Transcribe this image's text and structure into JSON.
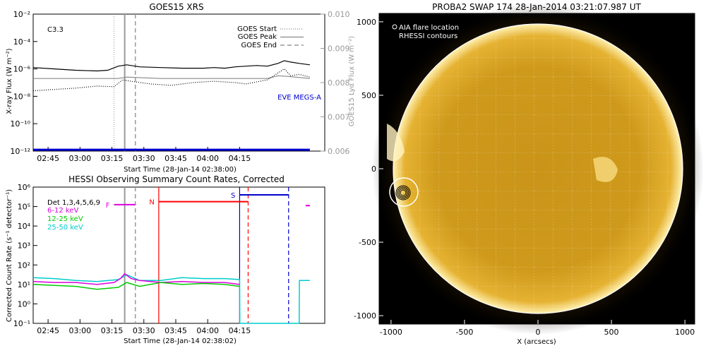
{
  "chart_data": [
    {
      "type": "line",
      "title": "GOES15 XRS",
      "annotation": "C3.3",
      "xlabel": "Start Time (28-Jan-14 02:38:00)",
      "ylabel": "X-ray Flux (W m⁻²)",
      "y2label": "GOES15 Lyα Flux (W m⁻²)",
      "x_ticks": [
        "02:45",
        "03:00",
        "03:15",
        "03:30",
        "03:45",
        "04:00",
        "04:15"
      ],
      "y_ticks": [
        "10⁻²",
        "10⁻⁴",
        "10⁻⁶",
        "10⁻⁸",
        "10⁻¹⁰",
        "10⁻¹²"
      ],
      "y_ticks_exp": [
        -2,
        -4,
        -6,
        -8,
        -10,
        -12
      ],
      "y2_ticks": [
        "0.010",
        "0.009",
        "0.008",
        "0.007",
        "0.006"
      ],
      "y2_ticks_val": [
        0.01,
        0.009,
        0.008,
        0.007,
        0.006
      ],
      "legend": [
        {
          "label": "GOES Start",
          "style": "dotted",
          "color": "#999999"
        },
        {
          "label": "GOES Peak",
          "style": "solid",
          "color": "#999999"
        },
        {
          "label": "GOES End",
          "style": "dashed",
          "color": "#999999"
        }
      ],
      "extra_label": "EVE MEGS-A",
      "extra_label_color": "#0000cc",
      "markers_min": {
        "start": 38,
        "peak": 43,
        "end": 48
      },
      "series_labels": [],
      "series": [
        {
          "color": "#000000",
          "style": "solid",
          "x_min": [
            0,
            10,
            20,
            30,
            35,
            40,
            44,
            50,
            60,
            70,
            80,
            85,
            90,
            95,
            100,
            105,
            110,
            115,
            118,
            121,
            125,
            130
          ],
          "log_y": [
            -5.9,
            -6.0,
            -6.1,
            -6.15,
            -6.1,
            -5.8,
            -5.7,
            -5.85,
            -5.9,
            -5.95,
            -5.95,
            -5.9,
            -5.95,
            -5.85,
            -5.8,
            -5.75,
            -5.8,
            -5.6,
            -5.4,
            -5.5,
            -5.6,
            -5.7
          ]
        },
        {
          "color": "#888888",
          "style": "solid",
          "x_min": [
            0,
            20,
            40,
            44,
            60,
            80,
            100,
            110,
            115,
            120,
            130
          ],
          "log_y": [
            -6.7,
            -6.7,
            -6.7,
            -6.6,
            -6.7,
            -6.7,
            -6.7,
            -6.7,
            -6.5,
            -6.55,
            -6.7
          ]
        },
        {
          "color": "#000000",
          "style": "dotted",
          "x_min": [
            0,
            10,
            20,
            30,
            38,
            42,
            46,
            55,
            65,
            75,
            85,
            95,
            100,
            110,
            115,
            118,
            121,
            125,
            130
          ],
          "log_y": [
            -7.6,
            -7.5,
            -7.4,
            -7.25,
            -7.3,
            -6.8,
            -6.9,
            -7.1,
            -7.2,
            -7.0,
            -6.9,
            -7.0,
            -7.1,
            -6.8,
            -6.3,
            -6.0,
            -6.5,
            -6.4,
            -6.6
          ]
        },
        {
          "color": "#0000cc",
          "style": "solid",
          "width": 3,
          "x_min": [
            0,
            130
          ],
          "log_y": [
            -11.9,
            -11.9
          ]
        }
      ]
    },
    {
      "type": "line",
      "title": "HESSI Observing Summary Count Rates, Corrected",
      "xlabel": "Start Time (28-Jan-14 02:38:02)",
      "ylabel": "Corrected Count Rate (s⁻¹ detector⁻¹)",
      "x_ticks": [
        "02:45",
        "03:00",
        "03:15",
        "03:30",
        "03:45",
        "04:00",
        "04:15"
      ],
      "y_ticks": [
        "10⁶",
        "10⁵",
        "10⁴",
        "10³",
        "10²",
        "10¹",
        "10⁰",
        "10⁻¹"
      ],
      "y_ticks_exp": [
        6,
        5,
        4,
        3,
        2,
        1,
        0,
        -1
      ],
      "legend": [
        {
          "label": "Det 1,3,4,5,6,9",
          "color": "#000000"
        },
        {
          "label": "6-12 keV",
          "color": "#dd00dd"
        },
        {
          "label": "12-25 keV",
          "color": "#00cc00"
        },
        {
          "label": "25-50 keV",
          "color": "#00cccc"
        }
      ],
      "flags": [
        {
          "label": "F",
          "color": "#dd00dd"
        },
        {
          "label": "N",
          "color": "#ff0000"
        },
        {
          "label": "S",
          "color": "#0000cc"
        }
      ],
      "markers_min": {
        "peak": 43,
        "end": 48
      },
      "series": [
        {
          "name": "25-50 keV",
          "color": "#00cccc",
          "x_min": [
            0,
            10,
            20,
            30,
            40,
            44,
            50,
            60,
            70,
            80,
            90,
            97,
            97.1,
            125,
            125.1,
            130
          ],
          "log_y": [
            1.35,
            1.3,
            1.2,
            1.15,
            1.25,
            1.5,
            1.2,
            1.2,
            1.35,
            1.3,
            1.3,
            1.25,
            -1,
            -1,
            1.2,
            1.2
          ]
        },
        {
          "name": "6-12 keV",
          "color": "#dd00dd",
          "x_min": [
            0,
            10,
            20,
            30,
            38,
            41,
            43,
            46,
            50,
            60,
            70,
            80,
            90,
            97
          ],
          "log_y": [
            1.15,
            1.1,
            1.1,
            1.0,
            1.1,
            1.3,
            1.55,
            1.3,
            1.2,
            1.1,
            1.15,
            1.1,
            1.1,
            1.0
          ]
        },
        {
          "name": "12-25 keV",
          "color": "#00cc00",
          "x_min": [
            0,
            10,
            20,
            30,
            40,
            44,
            50,
            60,
            70,
            80,
            90,
            97
          ],
          "log_y": [
            1.0,
            0.95,
            0.9,
            0.75,
            0.85,
            1.1,
            0.9,
            1.1,
            1.0,
            1.05,
            1.0,
            0.9
          ]
        }
      ],
      "bars": [
        {
          "label": "F",
          "color": "#dd00dd",
          "x_start": 38,
          "x_end": 48,
          "log_y": 5.1
        },
        {
          "label": "N",
          "color": "#ff0000",
          "x_start": 59,
          "x_end": 101,
          "log_y": 5.25
        },
        {
          "label": "S",
          "color": "#0000cc",
          "x_start": 97,
          "x_end": 120,
          "log_y": 5.6
        },
        {
          "label": "",
          "color": "#dd00dd",
          "x_start": 128,
          "x_end": 130,
          "log_y": 5.05
        }
      ],
      "vlines": [
        {
          "x_min": 59,
          "color": "#ff0000",
          "style": "solid"
        },
        {
          "x_min": 101,
          "color": "#ff0000",
          "style": "dashed"
        },
        {
          "x_min": 97,
          "color": "#0000cc",
          "style": "solid"
        },
        {
          "x_min": 120,
          "color": "#0000cc",
          "style": "dashed"
        }
      ]
    },
    {
      "type": "other",
      "title": "PROBA2 SWAP 174 28-Jan-2014 03:21:07.987 UT",
      "xlabel": "X (arcsecs)",
      "ylabel": "",
      "x_ticks": [
        "-1000",
        "-500",
        "0",
        "500",
        "1000"
      ],
      "x_ticks_val": [
        -1000,
        -500,
        0,
        500,
        1000
      ],
      "y_ticks": [
        "1000",
        "500",
        "0",
        "-500",
        "-1000"
      ],
      "y_ticks_val": [
        1000,
        500,
        0,
        -500,
        -1000
      ],
      "legend": [
        {
          "label": "AIA flare location"
        },
        {
          "label": "RHESSI contours"
        }
      ],
      "flare_location": {
        "x": -945,
        "y": -165
      }
    }
  ]
}
